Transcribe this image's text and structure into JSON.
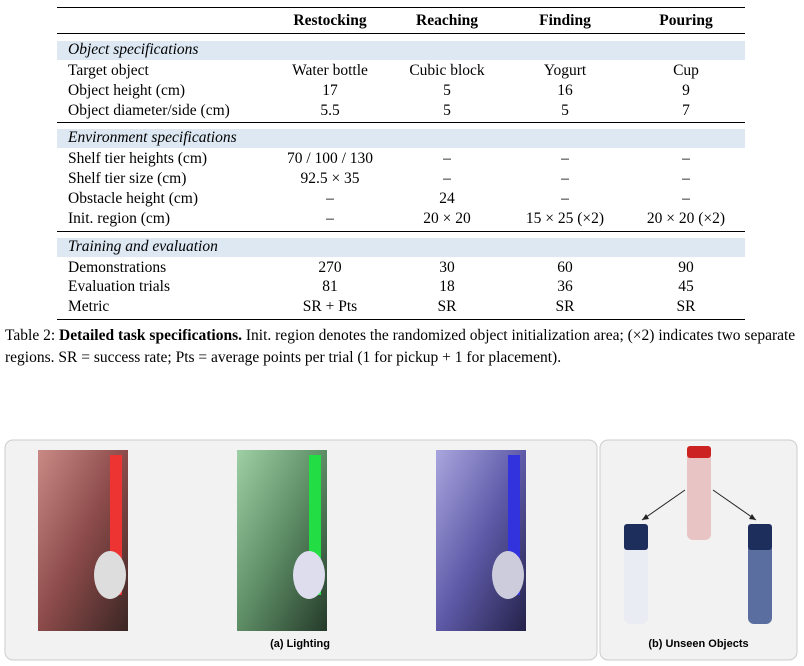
{
  "table": {
    "columns": [
      "",
      "Restocking",
      "Reaching",
      "Finding",
      "Pouring"
    ],
    "sections": [
      {
        "title": "Object specifications",
        "rows": [
          [
            "Target object",
            "Water bottle",
            "Cubic block",
            "Yogurt",
            "Cup"
          ],
          [
            "Object height (cm)",
            "17",
            "5",
            "16",
            "9"
          ],
          [
            "Object diameter/side (cm)",
            "5.5",
            "5",
            "5",
            "7"
          ]
        ]
      },
      {
        "title": "Environment specifications",
        "rows": [
          [
            "Shelf tier heights (cm)",
            "70 / 100 / 130",
            "–",
            "–",
            "–"
          ],
          [
            "Shelf tier size (cm)",
            "92.5 × 35",
            "–",
            "–",
            "–"
          ],
          [
            "Obstacle height (cm)",
            "–",
            "24",
            "–",
            "–"
          ],
          [
            "Init. region (cm)",
            "–",
            "20 × 20",
            "15 × 25 (×2)",
            "20 × 20 (×2)"
          ]
        ]
      },
      {
        "title": "Training and evaluation",
        "rows": [
          [
            "Demonstrations",
            "270",
            "30",
            "60",
            "90"
          ],
          [
            "Evaluation trials",
            "81",
            "18",
            "36",
            "45"
          ],
          [
            "Metric",
            "SR + Pts",
            "SR",
            "SR",
            "SR"
          ]
        ]
      }
    ]
  },
  "caption": {
    "label": "Table 2:",
    "bold": "Detailed task specifications.",
    "text": "Init. region denotes the randomized object initialization area; (×2) indicates two separate regions. SR = success rate; Pts = average points per trial (1 for pickup + 1 for placement)."
  },
  "figure": {
    "panel_a": "(a) Lighting",
    "panel_b": "(b) Unseen Objects"
  }
}
